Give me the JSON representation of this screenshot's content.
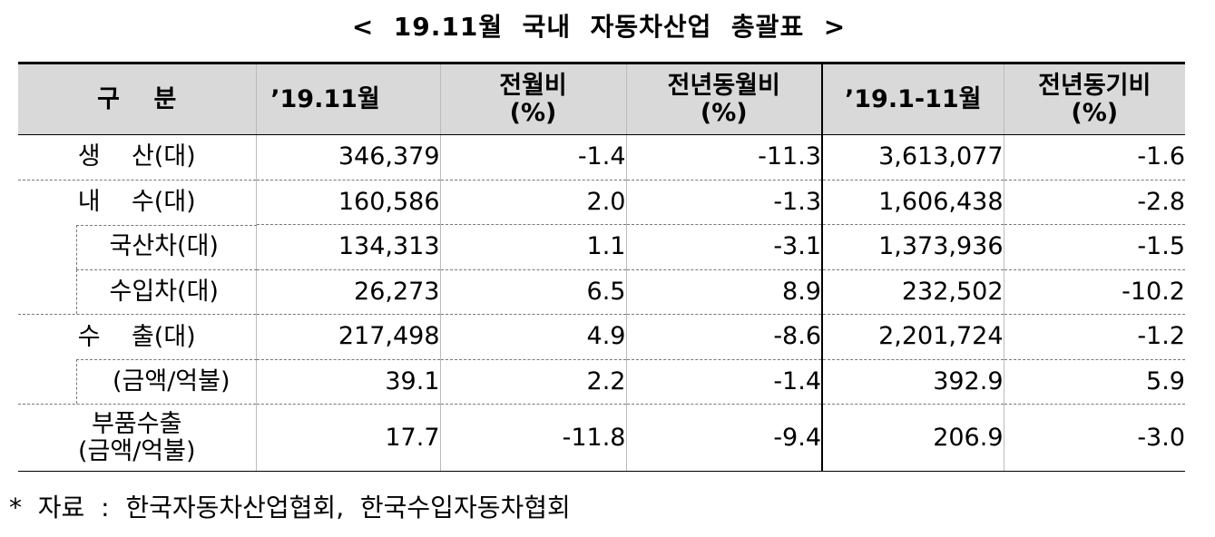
{
  "title": "<  19.11월  국내  자동차산업  총괄표  >",
  "headers": {
    "category": "구    분",
    "month": "’19.11월",
    "mom_line1": "전월비",
    "mom_line2": "(%)",
    "yoy_line1": "전년동월비",
    "yoy_line2": "(%)",
    "ytd": "’19.1-11월",
    "ytd_yoy_line1": "전년동기비",
    "ytd_yoy_line2": "(%)"
  },
  "rows": [
    {
      "label": "생    산(대)",
      "month": "346,379",
      "mom": "-1.4",
      "yoy": "-11.3",
      "ytd": "3,613,077",
      "ytd_yoy": "-1.6"
    },
    {
      "label": "내    수(대)",
      "month": "160,586",
      "mom": "2.0",
      "yoy": "-1.3",
      "ytd": "1,606,438",
      "ytd_yoy": "-2.8"
    },
    {
      "label": "국산차(대)",
      "month": "134,313",
      "mom": "1.1",
      "yoy": "-3.1",
      "ytd": "1,373,936",
      "ytd_yoy": "-1.5"
    },
    {
      "label": "수입차(대)",
      "month": "26,273",
      "mom": "6.5",
      "yoy": "8.9",
      "ytd": "232,502",
      "ytd_yoy": "-10.2"
    },
    {
      "label": "수    출(대)",
      "month": "217,498",
      "mom": "4.9",
      "yoy": "-8.6",
      "ytd": "2,201,724",
      "ytd_yoy": "-1.2"
    },
    {
      "label": "(금액/억불)",
      "month": "39.1",
      "mom": "2.2",
      "yoy": "-1.4",
      "ytd": "392.9",
      "ytd_yoy": "5.9"
    },
    {
      "label_line1": "부품수출",
      "label_line2": "(금액/억불)",
      "month": "17.7",
      "mom": "-11.8",
      "yoy": "-9.4",
      "ytd": "206.9",
      "ytd_yoy": "-3.0"
    }
  ],
  "source": "*  자료  :  한국자동차산업협회,  한국수입자동차협회"
}
